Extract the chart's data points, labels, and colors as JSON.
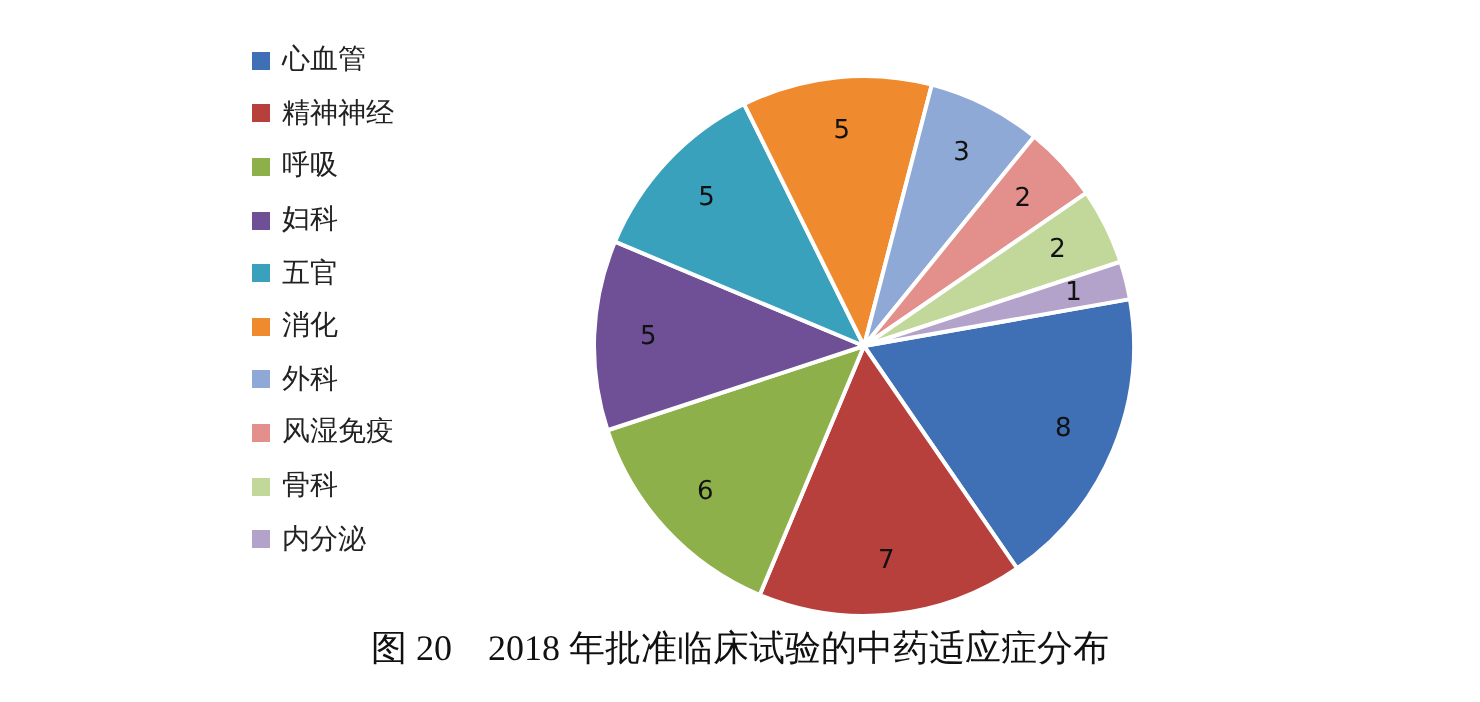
{
  "chart_data": {
    "type": "pie",
    "title": "图 20　2018 年批准临床试验的中药适应症分布",
    "categories": [
      "心血管",
      "精神神经",
      "呼吸",
      "妇科",
      "五官",
      "消化",
      "外科",
      "风湿免疫",
      "骨科",
      "内分泌"
    ],
    "values": [
      8,
      7,
      6,
      5,
      5,
      5,
      3,
      2,
      2,
      1
    ],
    "colors": [
      "#3f6fb5",
      "#b8403c",
      "#8db04a",
      "#6f4f96",
      "#3aa1bd",
      "#f08a2e",
      "#8ea9d6",
      "#e3908d",
      "#c2d89a",
      "#b3a2c9"
    ],
    "legend": "left",
    "data_labels": true
  }
}
